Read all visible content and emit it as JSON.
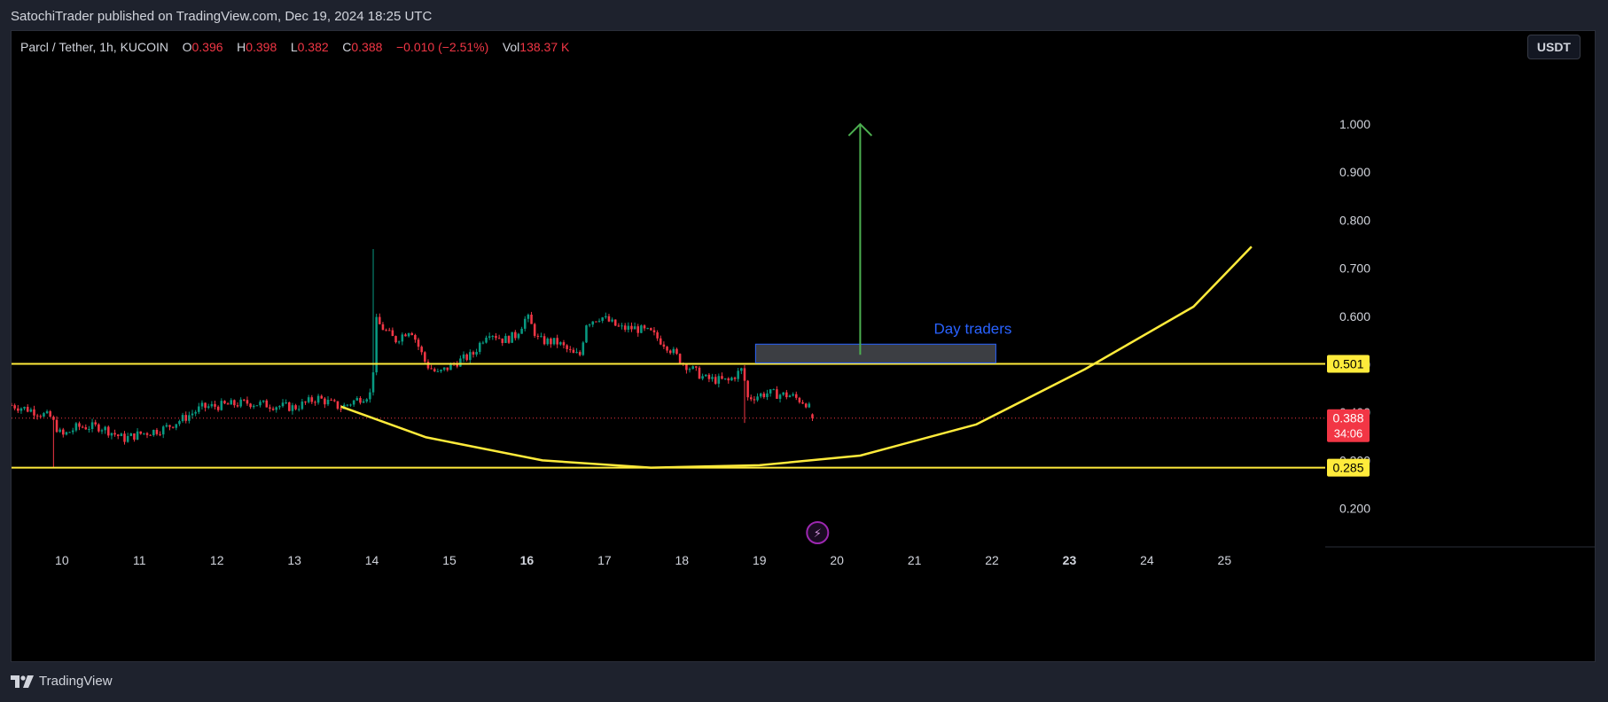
{
  "header": {
    "publish_line": "SatochiTrader published on TradingView.com, Dec 19, 2024 18:25 UTC"
  },
  "legend": {
    "symbol": "Parcl / Tether, 1h, KUCOIN",
    "o_label": "O",
    "o_value": "0.396",
    "h_label": "H",
    "h_value": "0.398",
    "l_label": "L",
    "l_value": "0.382",
    "c_label": "C",
    "c_value": "0.388",
    "change": "−0.010 (−2.51%)",
    "vol_label": "Vol",
    "vol_value": "138.37 K"
  },
  "currency_button": "USDT",
  "footer": {
    "brand": "TradingView"
  },
  "colors": {
    "background": "#000000",
    "up_candle": "#089981",
    "down_candle": "#f23645",
    "horizontal_line": "#ffeb3b",
    "curve": "#ffeb3b",
    "arrow": "#4caf50",
    "zone_text": "#2962ff",
    "price_badge": "#f23645"
  },
  "chart_data": {
    "type": "candlestick",
    "y_axis": {
      "ticks": [
        "1.000",
        "0.900",
        "0.800",
        "0.700",
        "0.600",
        "0.500",
        "0.400",
        "0.300",
        "0.200"
      ],
      "tick_values": [
        1.0,
        0.9,
        0.8,
        0.7,
        0.6,
        0.5,
        0.4,
        0.3,
        0.2
      ],
      "range": [
        0.12,
        1.12
      ]
    },
    "x_axis": {
      "ticks": [
        "10",
        "11",
        "12",
        "13",
        "14",
        "15",
        "16",
        "17",
        "18",
        "19",
        "20",
        "21",
        "22",
        "23",
        "24",
        "25"
      ],
      "bold_ticks": [
        "16",
        "23"
      ],
      "range_days": [
        9.35,
        26.3
      ]
    },
    "price_series_hourly_closes": {
      "start_day": 9.35,
      "waypoints": [
        [
          9.35,
          0.415
        ],
        [
          9.6,
          0.405
        ],
        [
          9.85,
          0.39
        ],
        [
          10.0,
          0.35
        ],
        [
          10.2,
          0.37
        ],
        [
          10.5,
          0.37
        ],
        [
          10.8,
          0.345
        ],
        [
          11.0,
          0.355
        ],
        [
          11.3,
          0.365
        ],
        [
          11.6,
          0.39
        ],
        [
          11.8,
          0.41
        ],
        [
          12.1,
          0.415
        ],
        [
          12.4,
          0.42
        ],
        [
          12.7,
          0.415
        ],
        [
          13.0,
          0.41
        ],
        [
          13.3,
          0.43
        ],
        [
          13.6,
          0.41
        ],
        [
          13.85,
          0.43
        ],
        [
          14.0,
          0.44
        ],
        [
          14.05,
          0.59
        ],
        [
          14.3,
          0.55
        ],
        [
          14.5,
          0.575
        ],
        [
          14.7,
          0.5
        ],
        [
          14.85,
          0.48
        ],
        [
          15.1,
          0.505
        ],
        [
          15.3,
          0.52
        ],
        [
          15.5,
          0.57
        ],
        [
          15.7,
          0.55
        ],
        [
          15.85,
          0.56
        ],
        [
          16.0,
          0.6
        ],
        [
          16.15,
          0.55
        ],
        [
          16.4,
          0.545
        ],
        [
          16.6,
          0.52
        ],
        [
          16.7,
          0.52
        ],
        [
          16.75,
          0.585
        ],
        [
          16.95,
          0.6
        ],
        [
          17.2,
          0.575
        ],
        [
          17.4,
          0.575
        ],
        [
          17.6,
          0.565
        ],
        [
          17.8,
          0.54
        ],
        [
          18.0,
          0.505
        ],
        [
          18.3,
          0.47
        ],
        [
          18.6,
          0.465
        ],
        [
          18.78,
          0.49
        ],
        [
          18.85,
          0.43
        ],
        [
          19.1,
          0.44
        ],
        [
          19.4,
          0.435
        ],
        [
          19.6,
          0.42
        ],
        [
          19.72,
          0.388
        ]
      ],
      "spike": {
        "day": 14.0,
        "high": 0.74
      },
      "wicks": [
        {
          "day": 9.9,
          "low": 0.285
        },
        {
          "day": 18.82,
          "low": 0.378
        }
      ],
      "last": {
        "open": 0.396,
        "high": 0.398,
        "low": 0.382,
        "close": 0.388
      }
    },
    "horizontal_levels": [
      {
        "value": 0.501,
        "label": "0.501"
      },
      {
        "value": 0.285,
        "label": "0.285"
      }
    ],
    "last_price_badge": {
      "price": "0.388",
      "countdown": "34:06",
      "value": 0.388
    },
    "annotations": {
      "zone": {
        "label": "Day traders",
        "day_start": 18.95,
        "day_end": 22.05,
        "y_low": 0.503,
        "y_high": 0.542
      },
      "arrow": {
        "day": 20.3,
        "from": 0.52,
        "to": 1.0
      },
      "curve_points": [
        [
          13.6,
          0.412
        ],
        [
          14.7,
          0.348
        ],
        [
          16.2,
          0.3
        ],
        [
          17.6,
          0.285
        ],
        [
          19.0,
          0.29
        ],
        [
          20.3,
          0.31
        ],
        [
          21.8,
          0.375
        ],
        [
          23.2,
          0.49
        ],
        [
          24.6,
          0.62
        ],
        [
          25.35,
          0.745
        ]
      ],
      "event_icon": {
        "day": 19.75,
        "symbol": "⚡"
      }
    }
  }
}
